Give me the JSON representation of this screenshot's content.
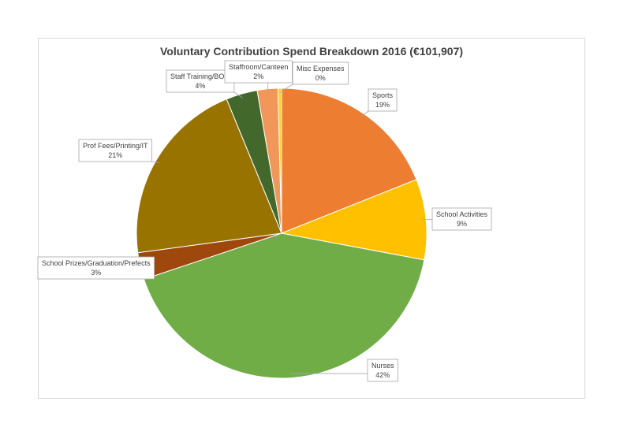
{
  "chart_data": {
    "type": "pie",
    "title": "Voluntary Contribution Spend Breakdown 2016 (€101,907)",
    "slices": [
      {
        "name": "Sports",
        "value": 19,
        "label": "19%",
        "color": "#ED7D31"
      },
      {
        "name": "School Activities",
        "value": 9,
        "label": "9%",
        "color": "#FFC000"
      },
      {
        "name": "Nurses",
        "value": 42,
        "label": "42%",
        "color": "#70AD47"
      },
      {
        "name": "School Prizes/Graduation/Prefects",
        "value": 3,
        "label": "3%",
        "color": "#9E480E"
      },
      {
        "name": "Prof Fees/Printing/IT",
        "value": 21,
        "label": "21%",
        "color": "#997300"
      },
      {
        "name": "Staff Training/BOM",
        "value": 4,
        "label": "4%",
        "color": "#43682B"
      },
      {
        "name": "Staffroom/Canteen",
        "value": 2,
        "label": "2%",
        "color": "#F1975A"
      },
      {
        "name": "Misc Expenses",
        "value": 0,
        "label": "0%",
        "color": "#FFCD33"
      }
    ],
    "start_angle": "12 o'clock",
    "direction": "clockwise",
    "legend": "none",
    "data_labels": "outside with leader lines"
  }
}
